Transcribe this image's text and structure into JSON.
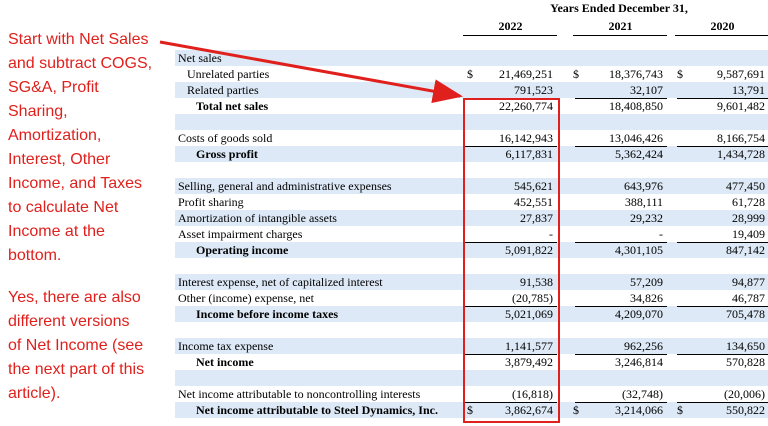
{
  "annotation": {
    "lines": [
      "Start with Net Sales",
      "and subtract COGS,",
      "SG&A, Profit",
      "Sharing,",
      "Amortization,",
      "Interest, Other",
      "Income, and Taxes",
      "to calculate Net",
      "Income at the",
      "bottom."
    ],
    "note_lines": [
      "Yes, there are also",
      "different versions",
      "of Net Income (see",
      "the next part of this",
      "article)."
    ]
  },
  "table": {
    "header": "Years Ended December 31,",
    "years": [
      "2022",
      "2021",
      "2020"
    ],
    "rows": [
      {
        "label": "Net sales"
      },
      {
        "label": "Unrelated parties",
        "currency": "$",
        "values": [
          "21,469,251",
          "18,376,743",
          "9,587,691"
        ]
      },
      {
        "label": "Related parties",
        "values": [
          "791,523",
          "32,107",
          "13,791"
        ]
      },
      {
        "label": "Total net sales",
        "values": [
          "22,260,774",
          "18,408,850",
          "9,601,482"
        ]
      },
      {
        "label": "Costs of goods sold",
        "values": [
          "16,142,943",
          "13,046,426",
          "8,166,754"
        ]
      },
      {
        "label": "Gross profit",
        "values": [
          "6,117,831",
          "5,362,424",
          "1,434,728"
        ]
      },
      {
        "label": "Selling, general and administrative expenses",
        "values": [
          "545,621",
          "643,976",
          "477,450"
        ]
      },
      {
        "label": "Profit sharing",
        "values": [
          "452,551",
          "388,111",
          "61,728"
        ]
      },
      {
        "label": "Amortization of intangible assets",
        "values": [
          "27,837",
          "29,232",
          "28,999"
        ]
      },
      {
        "label": "Asset impairment charges",
        "values": [
          "-",
          "-",
          "19,409"
        ]
      },
      {
        "label": "Operating income",
        "values": [
          "5,091,822",
          "4,301,105",
          "847,142"
        ]
      },
      {
        "label": "Interest expense, net of capitalized interest",
        "values": [
          "91,538",
          "57,209",
          "94,877"
        ]
      },
      {
        "label": "Other (income) expense, net",
        "values": [
          "(20,785)",
          "34,826",
          "46,787"
        ]
      },
      {
        "label": "Income before income taxes",
        "values": [
          "5,021,069",
          "4,209,070",
          "705,478"
        ]
      },
      {
        "label": "Income tax expense",
        "values": [
          "1,141,577",
          "962,256",
          "134,650"
        ]
      },
      {
        "label": "Net income",
        "values": [
          "3,879,492",
          "3,246,814",
          "570,828"
        ]
      },
      {
        "label": "Net income attributable to noncontrolling interests",
        "values": [
          "(16,818)",
          "(32,748)",
          "(20,006)"
        ]
      },
      {
        "label": "Net income attributable to Steel Dynamics, Inc.",
        "currency": "$",
        "values": [
          "3,862,674",
          "3,214,066",
          "550,822"
        ]
      }
    ]
  }
}
